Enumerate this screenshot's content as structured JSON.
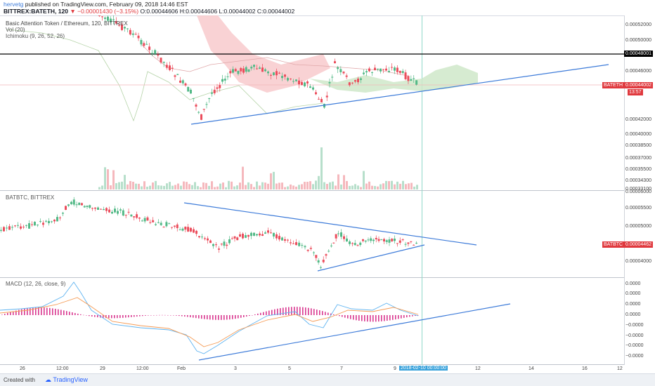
{
  "header": {
    "author": "hervetg",
    "published_text": "published on TradingView.com, February 09, 2018 14:46 EST",
    "symbol_line": "BITTREX:BATETH, 120",
    "change": "−0.00001430 (−3.15%)",
    "ohlc": "O:0.00044606 H:0.00044606 L:0.00044002 C:0.00044002"
  },
  "pane1": {
    "title": "Basic Attention Token / Ethereum, 120, BITTREX",
    "vol": "Vol (20)",
    "ichimoku": "Ichimoku (9, 26, 52, 26)",
    "axis": [
      "0.00052000",
      "0.00050000",
      "0.00048001",
      "0.00046000",
      "0.00044002",
      "0.00042000",
      "0.00040000",
      "0.00038500",
      "0.00037000",
      "0.00035500",
      "0.00034300",
      "0.00033100"
    ],
    "hline_label": "0.00048001",
    "symbol_badge": "BATETH",
    "price_badge": "0.00044002",
    "countdown": "13:57"
  },
  "pane2": {
    "title": "BATBTC, BITTREX",
    "axis": [
      "0.00006000",
      "0.00005500",
      "0.00005000",
      "0.00004500",
      "0.00004000"
    ],
    "symbol_badge": "BATBTC",
    "price_badge": "0.00004462"
  },
  "pane3": {
    "title": "MACD (12, 26, close, 9)",
    "axis": [
      "0.0000",
      "0.0000",
      "0.0000",
      "0.0000",
      "−0.0000",
      "−0.0000",
      "−0.0000",
      "−0.0000",
      "−0.0000"
    ]
  },
  "xaxis": {
    "labels": [
      "26",
      "12:00",
      "29",
      "12:00",
      "Feb",
      "3",
      "5",
      "7",
      "9",
      "12",
      "14",
      "16",
      "12"
    ],
    "cursor_label": "2018-02-10 00:00:00"
  },
  "footer": {
    "created_with": "Created with",
    "brand": "TradingView"
  },
  "colors": {
    "up": "#53b987",
    "down": "#eb4d5c",
    "trend": "#3d7bd9",
    "cloud_up": "#cfe8c9",
    "cloud_down": "#f7c7c9"
  }
}
